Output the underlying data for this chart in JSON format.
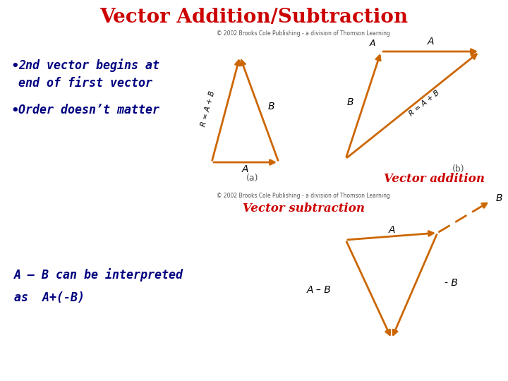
{
  "title": "Vector Addition/Subtraction",
  "title_color": "#CC0000",
  "title_fontsize": 20,
  "bg_color": "#ffffff",
  "bullet_color": "#000080",
  "bullet_fontsize": 12,
  "arrow_color": "#CC6600",
  "label_color": "#000000",
  "red_label_color": "#CC0000",
  "copyright_text": "© 2002 Brooks Cole Publishing - a division of Thomson Learning",
  "vec_add_label": "Vector addition",
  "vec_sub_label": "Vector subtraction",
  "bottom_text_line1": "A – B can be interpreted",
  "bottom_text_line2": "as  A+(-B)"
}
